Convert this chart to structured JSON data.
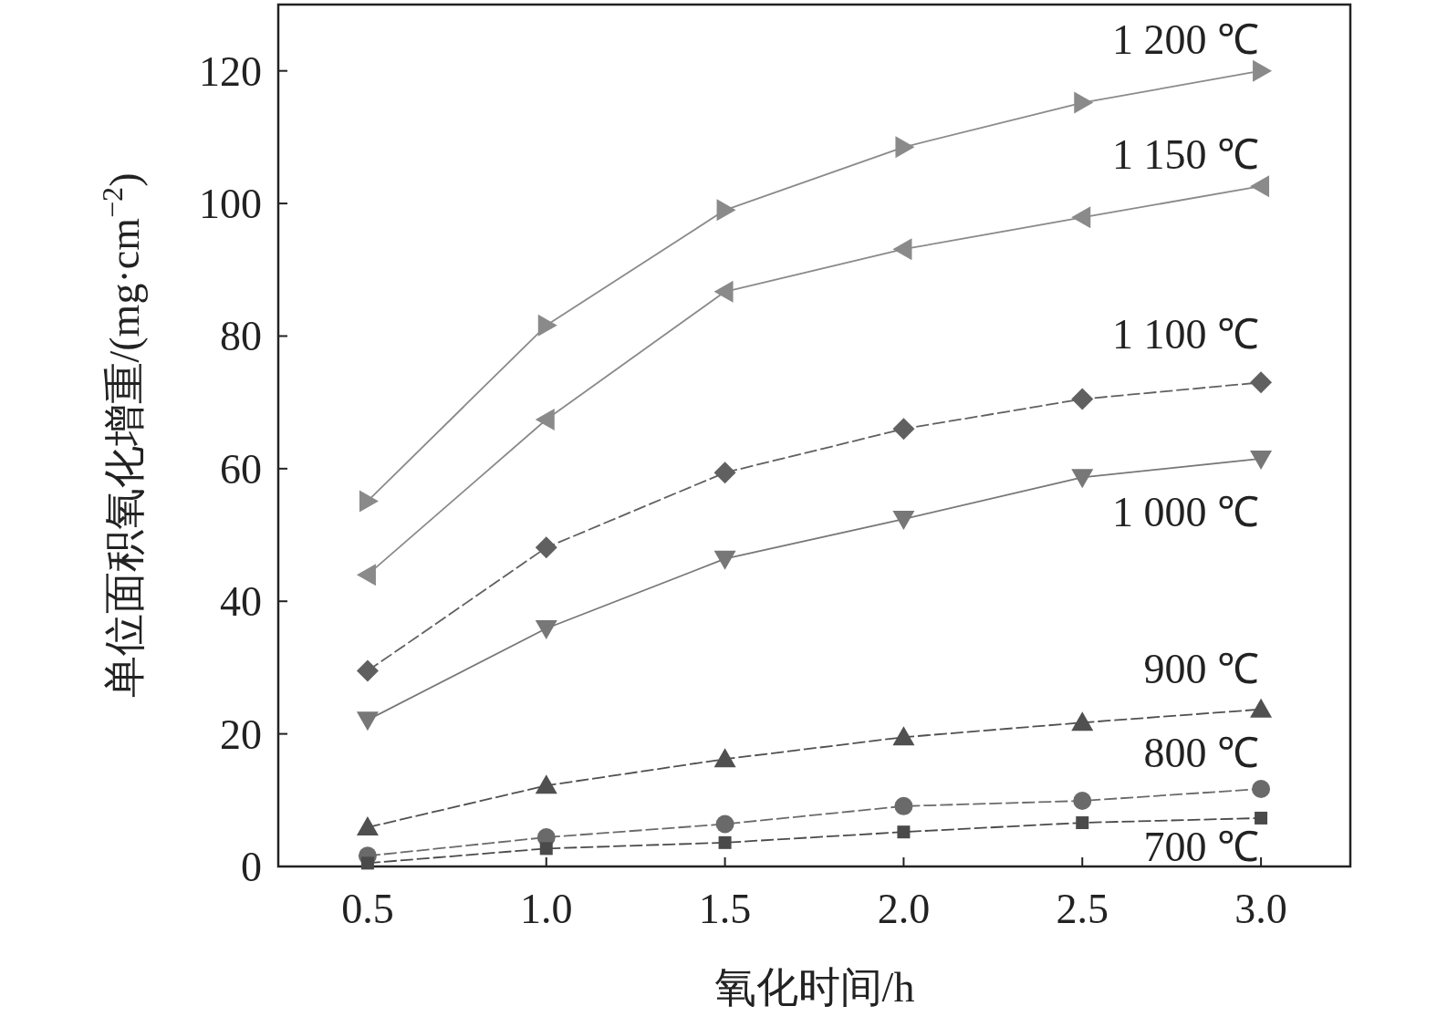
{
  "chart_data": {
    "type": "line",
    "xlabel": "氧化时间/h",
    "ylabel": "单位面积氧化增重/(mg·cm$^{−2}$)",
    "x": [
      0.5,
      1.0,
      1.5,
      2.0,
      2.5,
      3.0
    ],
    "xlim": [
      0.25,
      3.25
    ],
    "xticks": [
      {
        "value": 0.5,
        "label": "0.5"
      },
      {
        "value": 1.0,
        "label": "1.0"
      },
      {
        "value": 1.5,
        "label": "1.5"
      },
      {
        "value": 2.0,
        "label": "2.0"
      },
      {
        "value": 2.5,
        "label": "2.5"
      },
      {
        "value": 3.0,
        "label": "3.0"
      }
    ],
    "ylim": [
      0,
      130
    ],
    "yticks": [
      0,
      20,
      40,
      60,
      80,
      100,
      120
    ],
    "grid": false,
    "series": [
      {
        "name": "1 200 ℃",
        "color": "#8a8a8a",
        "marker": "triangle-right",
        "line_style": "solid",
        "values": [
          55.1,
          81.6,
          99.0,
          108.5,
          115.2,
          120.0
        ]
      },
      {
        "name": "1 150 ℃",
        "color": "#8a8a8a",
        "marker": "triangle-left",
        "line_style": "solid",
        "values": [
          44.0,
          67.4,
          86.7,
          93.1,
          97.9,
          102.6
        ]
      },
      {
        "name": "1 100 ℃",
        "color": "#606060",
        "marker": "diamond",
        "line_style": "dashed",
        "values": [
          29.5,
          48.1,
          59.4,
          66.0,
          70.5,
          73.0
        ]
      },
      {
        "name": "1 000 ℃",
        "color": "#777777",
        "marker": "triangle-down",
        "line_style": "solid",
        "values": [
          22.1,
          35.9,
          46.4,
          52.4,
          58.7,
          61.5
        ]
      },
      {
        "name": "900 ℃",
        "color": "#505050",
        "marker": "triangle",
        "line_style": "dashed",
        "values": [
          5.9,
          12.2,
          16.2,
          19.5,
          21.7,
          23.7
        ]
      },
      {
        "name": "800 ℃",
        "color": "#6a6a6a",
        "marker": "circle",
        "line_style": "dashed",
        "values": [
          1.6,
          4.4,
          6.4,
          9.1,
          9.9,
          11.7
        ]
      },
      {
        "name": "700 ℃",
        "color": "#4a4a4a",
        "marker": "square",
        "line_style": "dashed",
        "values": [
          0.5,
          2.7,
          3.6,
          5.2,
          6.6,
          7.3
        ]
      }
    ]
  }
}
